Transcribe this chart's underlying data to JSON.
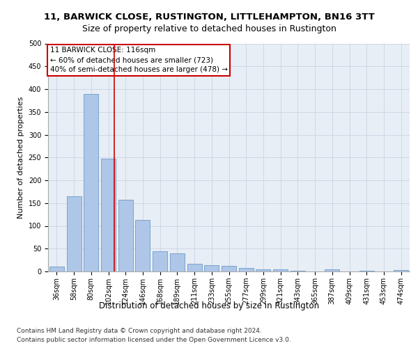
{
  "title1": "11, BARWICK CLOSE, RUSTINGTON, LITTLEHAMPTON, BN16 3TT",
  "title2": "Size of property relative to detached houses in Rustington",
  "xlabel": "Distribution of detached houses by size in Rustington",
  "ylabel": "Number of detached properties",
  "categories": [
    "36sqm",
    "58sqm",
    "80sqm",
    "102sqm",
    "124sqm",
    "146sqm",
    "168sqm",
    "189sqm",
    "211sqm",
    "233sqm",
    "255sqm",
    "277sqm",
    "299sqm",
    "321sqm",
    "343sqm",
    "365sqm",
    "387sqm",
    "409sqm",
    "431sqm",
    "453sqm",
    "474sqm"
  ],
  "values": [
    10,
    165,
    390,
    248,
    157,
    113,
    45,
    40,
    17,
    14,
    12,
    7,
    5,
    4,
    2,
    0,
    5,
    0,
    2,
    0,
    3
  ],
  "bar_color": "#aec6e8",
  "bar_edge_color": "#5a8fc0",
  "grid_color": "#c8d4e4",
  "background_color": "#e8eef5",
  "annotation_text_line1": "11 BARWICK CLOSE: 116sqm",
  "annotation_text_line2": "← 60% of detached houses are smaller (723)",
  "annotation_text_line3": "40% of semi-detached houses are larger (478) →",
  "annotation_box_color": "#ffffff",
  "annotation_box_edge": "#cc0000",
  "vline_color": "#cc0000",
  "vline_x": 3.35,
  "ylim": [
    0,
    500
  ],
  "yticks": [
    0,
    50,
    100,
    150,
    200,
    250,
    300,
    350,
    400,
    450,
    500
  ],
  "footnote1": "Contains HM Land Registry data © Crown copyright and database right 2024.",
  "footnote2": "Contains public sector information licensed under the Open Government Licence v3.0.",
  "title1_fontsize": 9.5,
  "title2_fontsize": 9,
  "xlabel_fontsize": 8.5,
  "ylabel_fontsize": 8,
  "tick_fontsize": 7,
  "annotation_fontsize": 7.5,
  "footnote_fontsize": 6.5
}
